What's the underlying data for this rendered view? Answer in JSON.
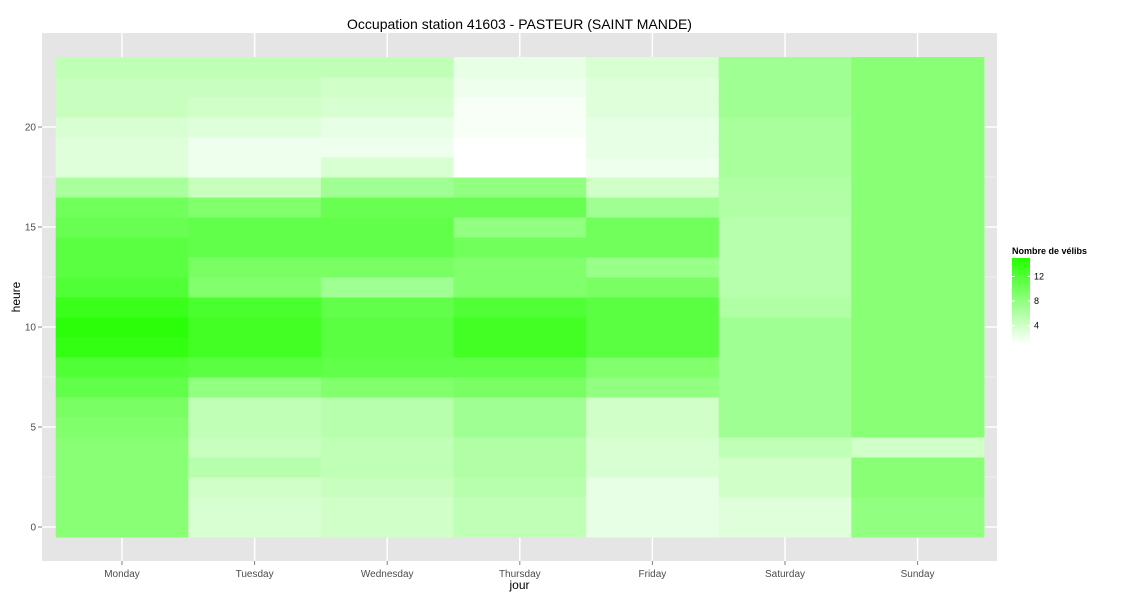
{
  "chart_data": {
    "type": "heatmap",
    "title": "Occupation station 41603 - PASTEUR (SAINT MANDE)",
    "xlabel": "jour",
    "ylabel": "heure",
    "x_categories": [
      "Monday",
      "Tuesday",
      "Wednesday",
      "Thursday",
      "Friday",
      "Saturday",
      "Sunday"
    ],
    "y_range": [
      0,
      23
    ],
    "y_ticks": [
      0,
      5,
      10,
      15,
      20
    ],
    "color_scale": {
      "title": "Nombre de vélibs",
      "low_color": "#ffffff",
      "high_color": "#22ff00",
      "min": 1,
      "max": 15,
      "ticks": [
        4,
        8,
        12
      ]
    },
    "grid": true,
    "legend_position": "right",
    "series": [
      {
        "values": [
          8.5,
          8.5,
          8.5,
          8.5,
          8.5,
          9,
          9.5,
          11,
          12,
          14,
          14.5,
          13.5,
          12,
          11.5,
          11.5,
          10.5,
          10,
          6.5,
          3,
          3,
          3.5,
          4.5,
          4.5,
          5
        ]
      },
      {
        "values": [
          3.5,
          3.5,
          4,
          5.5,
          4.5,
          5,
          5,
          8,
          11.5,
          13,
          13,
          12.5,
          9,
          9.5,
          11,
          11,
          9,
          4.5,
          2,
          2,
          3,
          4,
          4.5,
          5
        ]
      },
      {
        "values": [
          4,
          4,
          4.5,
          5,
          5,
          5.5,
          5.5,
          9,
          11,
          11.5,
          11.5,
          11,
          7,
          9.5,
          11,
          11,
          10.5,
          7,
          3.5,
          2,
          2.5,
          3.5,
          4,
          5
        ]
      },
      {
        "values": [
          5,
          5,
          5.5,
          6,
          6,
          7,
          7,
          9.5,
          11,
          13,
          13,
          12,
          9,
          9,
          10,
          8,
          10.5,
          8,
          1,
          1,
          1.5,
          1.5,
          2,
          2.5
        ]
      },
      {
        "values": [
          2.5,
          2.5,
          2.5,
          3.5,
          3.5,
          4,
          4,
          8,
          9,
          11.5,
          11.5,
          11.5,
          9.5,
          7.5,
          10,
          10,
          7,
          4,
          2,
          2.5,
          2.5,
          3,
          3,
          3.5
        ]
      },
      {
        "values": [
          3,
          3,
          4,
          4,
          5,
          7,
          7,
          7,
          7,
          7,
          7,
          6,
          5.5,
          5.5,
          5.5,
          5.5,
          6,
          6,
          6.5,
          6.5,
          6.5,
          7,
          7,
          7
        ]
      },
      {
        "values": [
          8,
          8,
          8.5,
          8.5,
          4,
          8.5,
          8.5,
          8.5,
          8.5,
          8.5,
          8.5,
          8.5,
          8.5,
          8.5,
          8.5,
          8.5,
          8.5,
          8.5,
          8.5,
          8.5,
          8.5,
          8.5,
          8.5,
          8.5
        ]
      }
    ]
  }
}
